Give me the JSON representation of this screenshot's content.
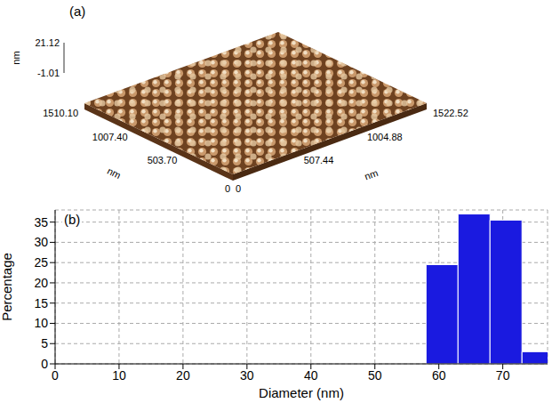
{
  "chart_data": [
    {
      "type": "surface",
      "panel": "(a)",
      "x_label": "nm",
      "y_label": "nm",
      "z_label": "nm",
      "xlim": [
        0,
        1522.52
      ],
      "xticks": [
        0,
        507.44,
        1004.88,
        1522.52
      ],
      "ylim": [
        0,
        1510.1
      ],
      "yticks": [
        0,
        {
          "value": 503.7,
          "label": "503.70"
        },
        {
          "value": 1007.4,
          "label": "1007.40"
        },
        {
          "value": 1510.1,
          "label": "1510.10"
        }
      ],
      "zlim": [
        -1.01,
        21.12
      ],
      "zticks": [
        -1.01,
        21.12
      ]
    },
    {
      "type": "histogram",
      "panel": "(b)",
      "x_label": "Diameter (nm)",
      "y_label": "Percentage",
      "bins": [
        58,
        63,
        68,
        73,
        78
      ],
      "counts": [
        24.5,
        37,
        35.5,
        3
      ],
      "color": "#1a1ae0",
      "xlim": [
        0,
        77
      ],
      "xticks": [
        0,
        10,
        20,
        30,
        40,
        50,
        60,
        70
      ],
      "ylim": [
        0,
        38
      ],
      "yticks": [
        0,
        5,
        10,
        15,
        20,
        25,
        30,
        35
      ],
      "grid": true
    }
  ]
}
